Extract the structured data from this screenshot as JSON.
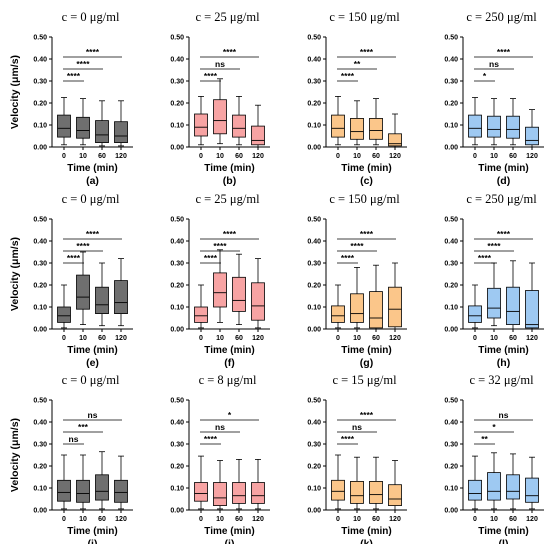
{
  "figure": {
    "colors": {
      "gray": "#6f6f6f",
      "pink": "#f7a3a3",
      "orange": "#fbc68a",
      "blue": "#9ec9f2",
      "axis": "#000000"
    }
  },
  "chart_data": [
    {
      "panel": "(a)",
      "type": "box",
      "title": "c = 0 μg/ml",
      "xlabel": "Time (min)",
      "ylabel": "Velocity (μm/s)",
      "ylim": [
        0,
        0.5
      ],
      "yticks": [
        "0.00",
        "0.10",
        "0.20",
        "0.30",
        "0.40",
        "0.50"
      ],
      "categories": [
        "0",
        "10",
        "60",
        "120"
      ],
      "color": "gray",
      "boxes": [
        {
          "min": 0.01,
          "q1": 0.045,
          "median": 0.085,
          "q3": 0.145,
          "max": 0.225
        },
        {
          "min": 0.01,
          "q1": 0.04,
          "median": 0.075,
          "q3": 0.135,
          "max": 0.22
        },
        {
          "min": 0.005,
          "q1": 0.02,
          "median": 0.055,
          "q3": 0.12,
          "max": 0.21
        },
        {
          "min": 0.005,
          "q1": 0.02,
          "median": 0.05,
          "q3": 0.115,
          "max": 0.21
        }
      ],
      "comparisons": [
        {
          "from": "0",
          "to": "120",
          "label": "****"
        },
        {
          "from": "0",
          "to": "60",
          "label": "****"
        },
        {
          "from": "0",
          "to": "10",
          "label": "****"
        }
      ]
    },
    {
      "panel": "(b)",
      "type": "box",
      "title": "c = 25 μg/ml",
      "xlabel": "Time (min)",
      "ylabel": "",
      "ylim": [
        0,
        0.5
      ],
      "yticks": [
        "0.00",
        "0.10",
        "0.20",
        "0.30",
        "0.40",
        "0.50"
      ],
      "categories": [
        "0",
        "10",
        "60",
        "120"
      ],
      "color": "pink",
      "boxes": [
        {
          "min": 0.01,
          "q1": 0.05,
          "median": 0.09,
          "q3": 0.15,
          "max": 0.23
        },
        {
          "min": 0.015,
          "q1": 0.06,
          "median": 0.12,
          "q3": 0.215,
          "max": 0.31
        },
        {
          "min": 0.01,
          "q1": 0.045,
          "median": 0.085,
          "q3": 0.145,
          "max": 0.23
        },
        {
          "min": 0.0,
          "q1": 0.01,
          "median": 0.03,
          "q3": 0.095,
          "max": 0.19
        }
      ],
      "comparisons": [
        {
          "from": "0",
          "to": "120",
          "label": "****"
        },
        {
          "from": "0",
          "to": "60",
          "label": "ns"
        },
        {
          "from": "0",
          "to": "10",
          "label": "****"
        }
      ]
    },
    {
      "panel": "(c)",
      "type": "box",
      "title": "c = 150 μg/ml",
      "xlabel": "Time (min)",
      "ylabel": "",
      "ylim": [
        0,
        0.5
      ],
      "yticks": [
        "0.00",
        "0.10",
        "0.20",
        "0.30",
        "0.40",
        "0.50"
      ],
      "categories": [
        "0",
        "10",
        "60",
        "120"
      ],
      "color": "orange",
      "boxes": [
        {
          "min": 0.01,
          "q1": 0.045,
          "median": 0.085,
          "q3": 0.145,
          "max": 0.23
        },
        {
          "min": 0.01,
          "q1": 0.035,
          "median": 0.07,
          "q3": 0.13,
          "max": 0.21
        },
        {
          "min": 0.01,
          "q1": 0.035,
          "median": 0.075,
          "q3": 0.13,
          "max": 0.22
        },
        {
          "min": 0.0,
          "q1": 0.005,
          "median": 0.015,
          "q3": 0.06,
          "max": 0.15
        }
      ],
      "comparisons": [
        {
          "from": "0",
          "to": "120",
          "label": "****"
        },
        {
          "from": "0",
          "to": "60",
          "label": "**"
        },
        {
          "from": "0",
          "to": "10",
          "label": "****"
        }
      ]
    },
    {
      "panel": "(d)",
      "type": "box",
      "title": "c = 250 μg/ml",
      "xlabel": "Time (min)",
      "ylabel": "",
      "ylim": [
        0,
        0.5
      ],
      "yticks": [
        "0.00",
        "0.10",
        "0.20",
        "0.30",
        "0.40",
        "0.50"
      ],
      "categories": [
        "0",
        "10",
        "60",
        "120"
      ],
      "color": "blue",
      "boxes": [
        {
          "min": 0.01,
          "q1": 0.045,
          "median": 0.085,
          "q3": 0.145,
          "max": 0.225
        },
        {
          "min": 0.01,
          "q1": 0.045,
          "median": 0.08,
          "q3": 0.14,
          "max": 0.22
        },
        {
          "min": 0.01,
          "q1": 0.04,
          "median": 0.08,
          "q3": 0.14,
          "max": 0.22
        },
        {
          "min": 0.0,
          "q1": 0.01,
          "median": 0.03,
          "q3": 0.09,
          "max": 0.17
        }
      ],
      "comparisons": [
        {
          "from": "0",
          "to": "120",
          "label": "****"
        },
        {
          "from": "0",
          "to": "60",
          "label": "ns"
        },
        {
          "from": "0",
          "to": "10",
          "label": "*"
        }
      ]
    },
    {
      "panel": "(e)",
      "type": "box",
      "title": "c = 0 μg/ml",
      "xlabel": "Time (min)",
      "ylabel": "Velocity (μm/s)",
      "ylim": [
        0,
        0.5
      ],
      "yticks": [
        "0.00",
        "0.10",
        "0.20",
        "0.30",
        "0.40",
        "0.50"
      ],
      "categories": [
        "0",
        "10",
        "60",
        "120"
      ],
      "color": "gray",
      "boxes": [
        {
          "min": 0.005,
          "q1": 0.03,
          "median": 0.06,
          "q3": 0.1,
          "max": 0.2
        },
        {
          "min": 0.02,
          "q1": 0.09,
          "median": 0.145,
          "q3": 0.245,
          "max": 0.35
        },
        {
          "min": 0.015,
          "q1": 0.07,
          "median": 0.11,
          "q3": 0.19,
          "max": 0.3
        },
        {
          "min": 0.015,
          "q1": 0.07,
          "median": 0.12,
          "q3": 0.22,
          "max": 0.32
        }
      ],
      "comparisons": [
        {
          "from": "0",
          "to": "120",
          "label": "****"
        },
        {
          "from": "0",
          "to": "60",
          "label": "****"
        },
        {
          "from": "0",
          "to": "10",
          "label": "****"
        }
      ]
    },
    {
      "panel": "(f)",
      "type": "box",
      "title": "c = 25 μg/ml",
      "xlabel": "Time (min)",
      "ylabel": "",
      "ylim": [
        0,
        0.5
      ],
      "yticks": [
        "0.00",
        "0.10",
        "0.20",
        "0.30",
        "0.40",
        "0.50"
      ],
      "categories": [
        "0",
        "10",
        "60",
        "120"
      ],
      "color": "pink",
      "boxes": [
        {
          "min": 0.005,
          "q1": 0.03,
          "median": 0.06,
          "q3": 0.1,
          "max": 0.2
        },
        {
          "min": 0.03,
          "q1": 0.1,
          "median": 0.165,
          "q3": 0.255,
          "max": 0.36
        },
        {
          "min": 0.02,
          "q1": 0.08,
          "median": 0.13,
          "q3": 0.235,
          "max": 0.34
        },
        {
          "min": 0.005,
          "q1": 0.04,
          "median": 0.105,
          "q3": 0.21,
          "max": 0.32
        }
      ],
      "comparisons": [
        {
          "from": "0",
          "to": "120",
          "label": "****"
        },
        {
          "from": "0",
          "to": "60",
          "label": "****"
        },
        {
          "from": "0",
          "to": "10",
          "label": "****"
        }
      ]
    },
    {
      "panel": "(g)",
      "type": "box",
      "title": "c = 150 μg/ml",
      "xlabel": "Time (min)",
      "ylabel": "",
      "ylim": [
        0,
        0.5
      ],
      "yticks": [
        "0.00",
        "0.10",
        "0.20",
        "0.30",
        "0.40",
        "0.50"
      ],
      "categories": [
        "0",
        "10",
        "60",
        "120"
      ],
      "color": "orange",
      "boxes": [
        {
          "min": 0.005,
          "q1": 0.03,
          "median": 0.06,
          "q3": 0.105,
          "max": 0.2
        },
        {
          "min": 0.005,
          "q1": 0.03,
          "median": 0.07,
          "q3": 0.16,
          "max": 0.28
        },
        {
          "min": 0.0,
          "q1": 0.005,
          "median": 0.05,
          "q3": 0.17,
          "max": 0.29
        },
        {
          "min": 0.0,
          "q1": 0.01,
          "median": 0.09,
          "q3": 0.19,
          "max": 0.3
        }
      ],
      "comparisons": [
        {
          "from": "0",
          "to": "120",
          "label": "****"
        },
        {
          "from": "0",
          "to": "60",
          "label": "****"
        },
        {
          "from": "0",
          "to": "10",
          "label": "****"
        }
      ]
    },
    {
      "panel": "(h)",
      "type": "box",
      "title": "c = 250 μg/ml",
      "xlabel": "Time (min)",
      "ylabel": "",
      "ylim": [
        0,
        0.5
      ],
      "yticks": [
        "0.00",
        "0.10",
        "0.20",
        "0.30",
        "0.40",
        "0.50"
      ],
      "categories": [
        "0",
        "10",
        "60",
        "120"
      ],
      "color": "blue",
      "boxes": [
        {
          "min": 0.005,
          "q1": 0.03,
          "median": 0.06,
          "q3": 0.105,
          "max": 0.2
        },
        {
          "min": 0.015,
          "q1": 0.05,
          "median": 0.095,
          "q3": 0.185,
          "max": 0.3
        },
        {
          "min": 0.0,
          "q1": 0.02,
          "median": 0.08,
          "q3": 0.19,
          "max": 0.31
        },
        {
          "min": 0.0,
          "q1": 0.005,
          "median": 0.02,
          "q3": 0.175,
          "max": 0.3
        }
      ],
      "comparisons": [
        {
          "from": "0",
          "to": "120",
          "label": "****"
        },
        {
          "from": "0",
          "to": "60",
          "label": "****"
        },
        {
          "from": "0",
          "to": "10",
          "label": "****"
        }
      ]
    },
    {
      "panel": "(i)",
      "type": "box",
      "title": "c = 0 μg/ml",
      "xlabel": "Time (min)",
      "ylabel": "Velocity (μm/s)",
      "ylim": [
        0,
        0.5
      ],
      "yticks": [
        "0.00",
        "0.10",
        "0.20",
        "0.30",
        "0.40",
        "0.50"
      ],
      "categories": [
        "0",
        "10",
        "60",
        "120"
      ],
      "color": "gray",
      "boxes": [
        {
          "min": 0.005,
          "q1": 0.04,
          "median": 0.08,
          "q3": 0.135,
          "max": 0.25
        },
        {
          "min": 0.005,
          "q1": 0.035,
          "median": 0.075,
          "q3": 0.135,
          "max": 0.25
        },
        {
          "min": 0.005,
          "q1": 0.045,
          "median": 0.085,
          "q3": 0.16,
          "max": 0.265
        },
        {
          "min": 0.005,
          "q1": 0.035,
          "median": 0.08,
          "q3": 0.135,
          "max": 0.245
        }
      ],
      "comparisons": [
        {
          "from": "0",
          "to": "120",
          "label": "ns"
        },
        {
          "from": "0",
          "to": "60",
          "label": "***"
        },
        {
          "from": "0",
          "to": "10",
          "label": "ns"
        }
      ]
    },
    {
      "panel": "(j)",
      "type": "box",
      "title": "c = 8 μg/ml",
      "xlabel": "Time (min)",
      "ylabel": "",
      "ylim": [
        0,
        0.5
      ],
      "yticks": [
        "0.00",
        "0.10",
        "0.20",
        "0.30",
        "0.40",
        "0.50"
      ],
      "categories": [
        "0",
        "10",
        "60",
        "120"
      ],
      "color": "pink",
      "boxes": [
        {
          "min": 0.005,
          "q1": 0.04,
          "median": 0.075,
          "q3": 0.125,
          "max": 0.245
        },
        {
          "min": 0.005,
          "q1": 0.02,
          "median": 0.055,
          "q3": 0.125,
          "max": 0.225
        },
        {
          "min": 0.005,
          "q1": 0.03,
          "median": 0.065,
          "q3": 0.125,
          "max": 0.23
        },
        {
          "min": 0.005,
          "q1": 0.03,
          "median": 0.065,
          "q3": 0.125,
          "max": 0.23
        }
      ],
      "comparisons": [
        {
          "from": "0",
          "to": "120",
          "label": "*"
        },
        {
          "from": "0",
          "to": "60",
          "label": "ns"
        },
        {
          "from": "0",
          "to": "10",
          "label": "****"
        }
      ]
    },
    {
      "panel": "(k)",
      "type": "box",
      "title": "c = 15 μg/ml",
      "xlabel": "Time (min)",
      "ylabel": "",
      "ylim": [
        0,
        0.5
      ],
      "yticks": [
        "0.00",
        "0.10",
        "0.20",
        "0.30",
        "0.40",
        "0.50"
      ],
      "categories": [
        "0",
        "10",
        "60",
        "120"
      ],
      "color": "orange",
      "boxes": [
        {
          "min": 0.005,
          "q1": 0.045,
          "median": 0.085,
          "q3": 0.135,
          "max": 0.25
        },
        {
          "min": 0.005,
          "q1": 0.03,
          "median": 0.065,
          "q3": 0.13,
          "max": 0.24
        },
        {
          "min": 0.005,
          "q1": 0.03,
          "median": 0.07,
          "q3": 0.13,
          "max": 0.24
        },
        {
          "min": 0.0,
          "q1": 0.02,
          "median": 0.05,
          "q3": 0.115,
          "max": 0.225
        }
      ],
      "comparisons": [
        {
          "from": "0",
          "to": "120",
          "label": "****"
        },
        {
          "from": "0",
          "to": "60",
          "label": "ns"
        },
        {
          "from": "0",
          "to": "10",
          "label": "****"
        }
      ]
    },
    {
      "panel": "(l)",
      "type": "box",
      "title": "c = 32 μg/ml",
      "xlabel": "Time (min)",
      "ylabel": "",
      "ylim": [
        0,
        0.5
      ],
      "yticks": [
        "0.00",
        "0.10",
        "0.20",
        "0.30",
        "0.40",
        "0.50"
      ],
      "categories": [
        "0",
        "10",
        "60",
        "120"
      ],
      "color": "blue",
      "boxes": [
        {
          "min": 0.005,
          "q1": 0.045,
          "median": 0.075,
          "q3": 0.135,
          "max": 0.245
        },
        {
          "min": 0.005,
          "q1": 0.045,
          "median": 0.085,
          "q3": 0.17,
          "max": 0.26
        },
        {
          "min": 0.005,
          "q1": 0.05,
          "median": 0.085,
          "q3": 0.16,
          "max": 0.255
        },
        {
          "min": 0.005,
          "q1": 0.035,
          "median": 0.065,
          "q3": 0.145,
          "max": 0.24
        }
      ],
      "comparisons": [
        {
          "from": "0",
          "to": "120",
          "label": "ns"
        },
        {
          "from": "0",
          "to": "60",
          "label": "*"
        },
        {
          "from": "0",
          "to": "10",
          "label": "**"
        }
      ]
    }
  ]
}
